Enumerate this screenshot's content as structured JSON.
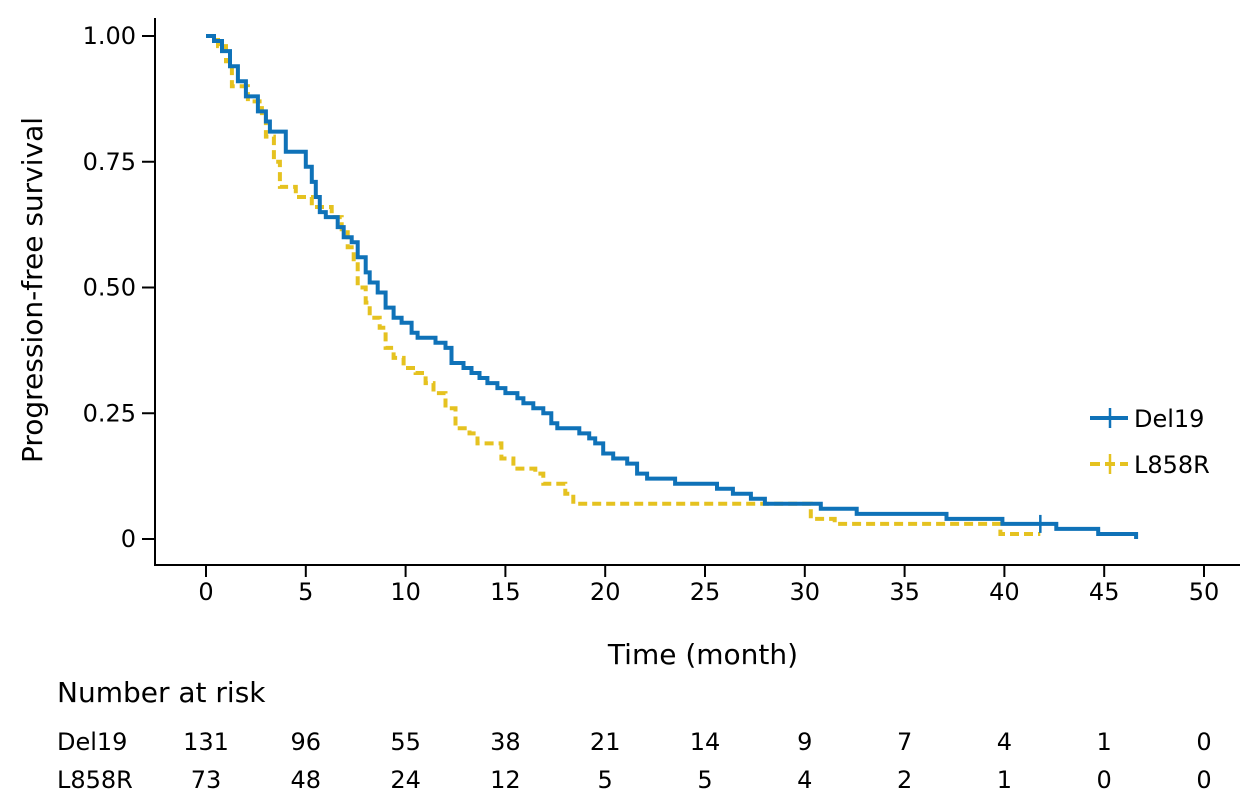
{
  "chart_data": {
    "type": "line",
    "subtype": "kaplan-meier",
    "title": "",
    "xlabel": "Time (month)",
    "ylabel": "Progression-free survival",
    "xlim": [
      0,
      50
    ],
    "ylim": [
      0,
      1
    ],
    "x_ticks": [
      0,
      5,
      10,
      15,
      20,
      25,
      30,
      35,
      40,
      45,
      50
    ],
    "x_tick_labels": [
      "0",
      "5",
      "10",
      "15",
      "20",
      "25",
      "30",
      "35",
      "40",
      "45",
      "50"
    ],
    "y_ticks": [
      0,
      0.25,
      0.5,
      0.75,
      1.0
    ],
    "y_tick_labels": [
      "0",
      "0.25",
      "0.50",
      "0.75",
      "1.00"
    ],
    "grid": false,
    "legend": "right",
    "series": [
      {
        "name": "Del19",
        "color": "#0f72b8",
        "style": "solid",
        "points": [
          [
            0,
            1.0
          ],
          [
            0.4,
            0.99
          ],
          [
            0.8,
            0.97
          ],
          [
            1.2,
            0.94
          ],
          [
            1.6,
            0.91
          ],
          [
            2.0,
            0.88
          ],
          [
            2.6,
            0.85
          ],
          [
            3.0,
            0.83
          ],
          [
            3.2,
            0.81
          ],
          [
            3.9,
            0.81
          ],
          [
            4.0,
            0.77
          ],
          [
            4.9,
            0.77
          ],
          [
            5.0,
            0.74
          ],
          [
            5.3,
            0.71
          ],
          [
            5.5,
            0.68
          ],
          [
            5.7,
            0.65
          ],
          [
            6.0,
            0.64
          ],
          [
            6.6,
            0.62
          ],
          [
            6.9,
            0.6
          ],
          [
            7.3,
            0.59
          ],
          [
            7.6,
            0.56
          ],
          [
            8.0,
            0.53
          ],
          [
            8.2,
            0.51
          ],
          [
            8.6,
            0.49
          ],
          [
            9.0,
            0.46
          ],
          [
            9.4,
            0.44
          ],
          [
            9.8,
            0.43
          ],
          [
            10.3,
            0.41
          ],
          [
            10.6,
            0.4
          ],
          [
            11.0,
            0.4
          ],
          [
            11.5,
            0.39
          ],
          [
            12.0,
            0.38
          ],
          [
            12.3,
            0.35
          ],
          [
            12.9,
            0.34
          ],
          [
            13.3,
            0.33
          ],
          [
            13.7,
            0.32
          ],
          [
            14.1,
            0.31
          ],
          [
            14.6,
            0.3
          ],
          [
            15.0,
            0.29
          ],
          [
            15.6,
            0.28
          ],
          [
            15.9,
            0.27
          ],
          [
            16.4,
            0.26
          ],
          [
            16.9,
            0.25
          ],
          [
            17.3,
            0.23
          ],
          [
            17.6,
            0.22
          ],
          [
            18.4,
            0.22
          ],
          [
            18.7,
            0.21
          ],
          [
            19.2,
            0.2
          ],
          [
            19.5,
            0.19
          ],
          [
            19.9,
            0.17
          ],
          [
            20.4,
            0.16
          ],
          [
            21.1,
            0.15
          ],
          [
            21.6,
            0.13
          ],
          [
            22.1,
            0.12
          ],
          [
            23.5,
            0.11
          ],
          [
            25.6,
            0.1
          ],
          [
            26.4,
            0.09
          ],
          [
            27.3,
            0.08
          ],
          [
            28.0,
            0.07
          ],
          [
            30.8,
            0.06
          ],
          [
            32.6,
            0.05
          ],
          [
            37.1,
            0.04
          ],
          [
            39.9,
            0.03
          ],
          [
            42.6,
            0.02
          ],
          [
            44.7,
            0.01
          ],
          [
            46.5,
            0.01
          ],
          [
            46.6,
            0.0
          ]
        ],
        "censor_marks": [
          [
            41.8,
            0.03
          ]
        ]
      },
      {
        "name": "L858R",
        "color": "#e5c220",
        "style": "dashed",
        "points": [
          [
            0,
            1.0
          ],
          [
            0.6,
            0.98
          ],
          [
            1.0,
            0.95
          ],
          [
            1.3,
            0.9
          ],
          [
            1.9,
            0.9
          ],
          [
            2.1,
            0.87
          ],
          [
            2.8,
            0.84
          ],
          [
            3.0,
            0.8
          ],
          [
            3.4,
            0.75
          ],
          [
            3.7,
            0.7
          ],
          [
            4.2,
            0.7
          ],
          [
            4.5,
            0.68
          ],
          [
            5.0,
            0.68
          ],
          [
            5.3,
            0.66
          ],
          [
            6.0,
            0.66
          ],
          [
            6.3,
            0.64
          ],
          [
            6.8,
            0.61
          ],
          [
            7.1,
            0.58
          ],
          [
            7.4,
            0.55
          ],
          [
            7.6,
            0.5
          ],
          [
            8.0,
            0.47
          ],
          [
            8.2,
            0.44
          ],
          [
            8.7,
            0.42
          ],
          [
            9.0,
            0.38
          ],
          [
            9.4,
            0.36
          ],
          [
            9.9,
            0.34
          ],
          [
            10.5,
            0.33
          ],
          [
            11.0,
            0.31
          ],
          [
            11.4,
            0.29
          ],
          [
            12.0,
            0.26
          ],
          [
            12.5,
            0.22
          ],
          [
            13.2,
            0.21
          ],
          [
            13.6,
            0.19
          ],
          [
            14.5,
            0.19
          ],
          [
            14.8,
            0.16
          ],
          [
            15.4,
            0.14
          ],
          [
            16.5,
            0.13
          ],
          [
            16.9,
            0.11
          ],
          [
            17.8,
            0.11
          ],
          [
            18.0,
            0.09
          ],
          [
            18.4,
            0.07
          ],
          [
            29.5,
            0.07
          ],
          [
            30.3,
            0.04
          ],
          [
            31.5,
            0.03
          ],
          [
            39.4,
            0.03
          ],
          [
            39.8,
            0.01
          ],
          [
            41.8,
            0.01
          ]
        ],
        "censor_marks": []
      }
    ],
    "risk_table": {
      "title": "Number at risk",
      "times": [
        0,
        5,
        10,
        15,
        20,
        25,
        30,
        35,
        40,
        45,
        50
      ],
      "rows": [
        {
          "label": "Del19",
          "values": [
            131,
            96,
            55,
            38,
            21,
            14,
            9,
            7,
            4,
            1,
            0
          ]
        },
        {
          "label": "L858R",
          "values": [
            73,
            48,
            24,
            12,
            5,
            5,
            4,
            2,
            1,
            0,
            0
          ]
        }
      ]
    }
  }
}
